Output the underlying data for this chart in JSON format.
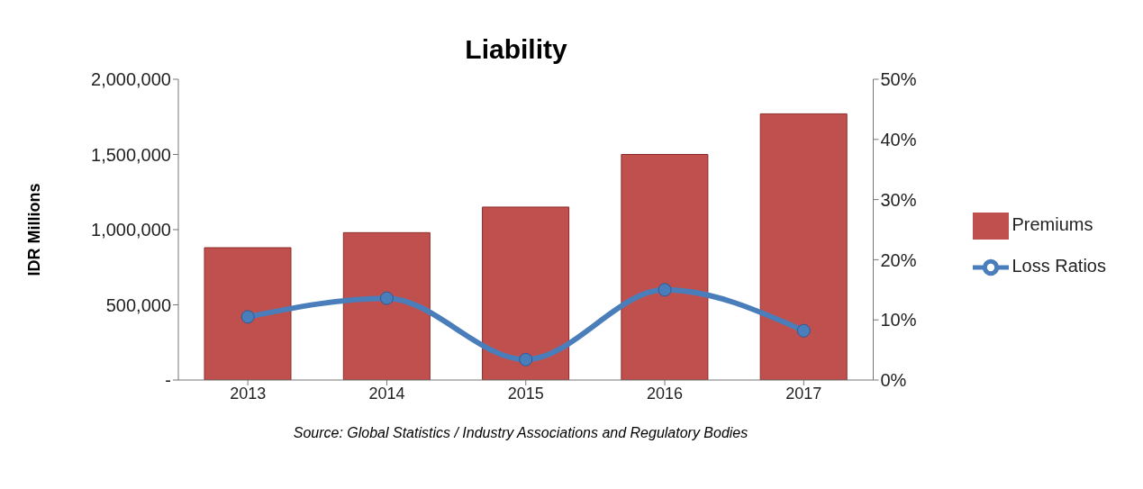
{
  "chart_data": {
    "type": "bar",
    "title": "Liability",
    "ylabel": "IDR Millions",
    "categories": [
      "2013",
      "2014",
      "2015",
      "2016",
      "2017"
    ],
    "series": [
      {
        "name": "Premiums",
        "color": "#c0504d",
        "values": [
          880000,
          980000,
          1150000,
          1500000,
          1770000
        ]
      },
      {
        "name": "Loss Ratios",
        "type": "line",
        "axis": "y2",
        "color": "#4a7ebb",
        "values": [
          10.5,
          13.6,
          3.4,
          15.0,
          8.2
        ]
      }
    ],
    "ylim": [
      0,
      2000000
    ],
    "yticks": [
      {
        "value": 0,
        "label": "-"
      },
      {
        "value": 500000,
        "label": "500,000"
      },
      {
        "value": 1000000,
        "label": "1,000,000"
      },
      {
        "value": 1500000,
        "label": "1,500,000"
      },
      {
        "value": 2000000,
        "label": "2,000,000"
      }
    ],
    "y2lim": [
      0,
      50
    ],
    "y2ticks": [
      {
        "value": 0,
        "label": "0%"
      },
      {
        "value": 10,
        "label": "10%"
      },
      {
        "value": 20,
        "label": "20%"
      },
      {
        "value": 30,
        "label": "30%"
      },
      {
        "value": 40,
        "label": "40%"
      },
      {
        "value": 50,
        "label": "50%"
      }
    ],
    "legend": "right",
    "marker": "circle",
    "grid": false,
    "annotations": [
      "Source: Global Statistics / Industry Associations and Regulatory Bodies"
    ]
  }
}
